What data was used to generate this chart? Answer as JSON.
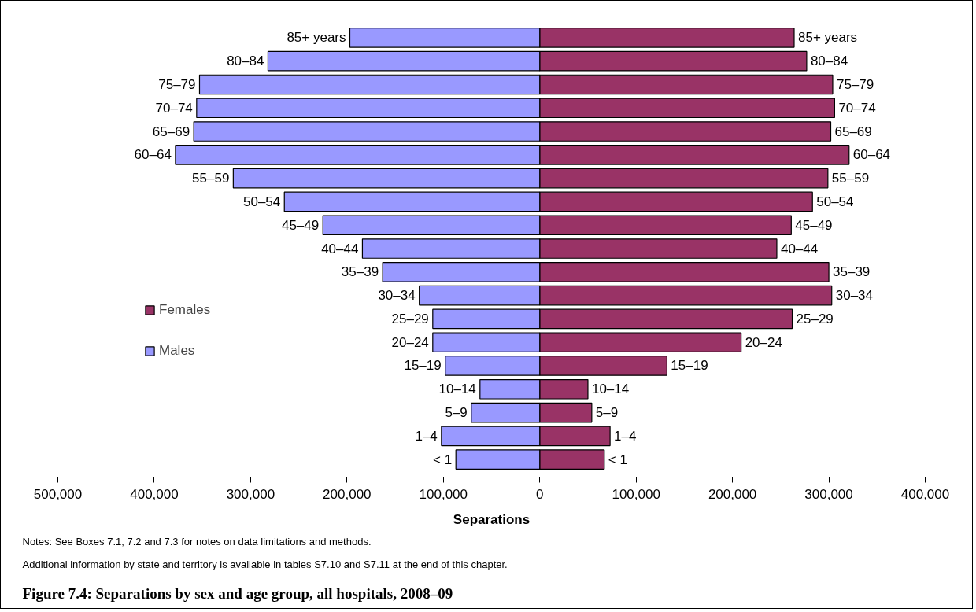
{
  "chart_data": {
    "type": "bar",
    "orientation": "horizontal",
    "stacked": true,
    "title": "Figure 7.4: Separations by sex and age group, all hospitals, 2008–09",
    "xlabel": "Separations",
    "categories": [
      "85+ years",
      "80–84",
      "75–79",
      "70–74",
      "65–69",
      "60–64",
      "55–59",
      "50–54",
      "45–49",
      "40–44",
      "35–39",
      "30–34",
      "25–29",
      "20–24",
      "15–19",
      "10–14",
      "5–9",
      "1–4",
      "< 1"
    ],
    "series": [
      {
        "name": "Females",
        "color": "#993366",
        "values": [
          264000,
          277000,
          304000,
          306000,
          302000,
          321000,
          299000,
          283000,
          261000,
          246000,
          300000,
          303000,
          262000,
          209000,
          132000,
          50000,
          54000,
          73000,
          67000
        ]
      },
      {
        "name": "Males",
        "color": "#9999ff",
        "values": [
          -197000,
          -282000,
          -353000,
          -356000,
          -359000,
          -378000,
          -318000,
          -265000,
          -225000,
          -184000,
          -163000,
          -125000,
          -111000,
          -111000,
          -98000,
          -62000,
          -71000,
          -102000,
          -87000
        ]
      }
    ],
    "xlim": [
      -500000,
      400000
    ],
    "xticks": [
      {
        "value": -500000,
        "label": "500,000"
      },
      {
        "value": -400000,
        "label": "400,000"
      },
      {
        "value": -300000,
        "label": "300,000"
      },
      {
        "value": -200000,
        "label": "200,000"
      },
      {
        "value": -100000,
        "label": "100,000"
      },
      0,
      {
        "value": 100000,
        "label": "100,000"
      },
      {
        "value": 200000,
        "label": "200,000"
      },
      {
        "value": 300000,
        "label": "300,000"
      },
      {
        "value": 400000,
        "label": "400,000"
      }
    ],
    "tick_labels": "x",
    "grid": false,
    "legend": "left",
    "annotations": [
      "Notes: See Boxes 7.1, 7.2 and 7.3 for notes on data limitations and methods.",
      "Additional information by state and territory is available in tables S7.10 and S7.11 at the end of this chapter."
    ]
  }
}
